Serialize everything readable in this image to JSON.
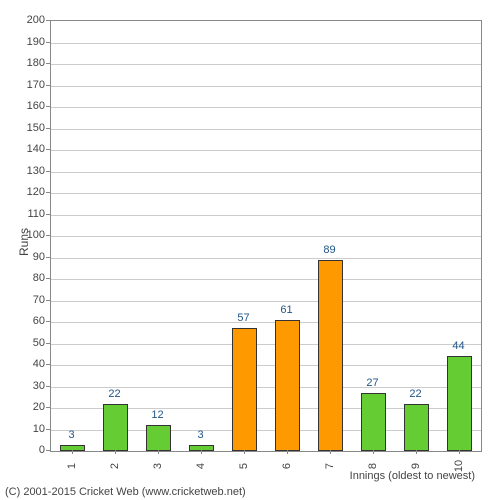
{
  "chart": {
    "type": "bar",
    "ylabel": "Runs",
    "xlabel": "Innings (oldest to newest)",
    "ylim": [
      0,
      200
    ],
    "ytick_step": 10,
    "categories": [
      "1",
      "2",
      "3",
      "4",
      "5",
      "6",
      "7",
      "8",
      "9",
      "10"
    ],
    "values": [
      3,
      22,
      12,
      3,
      57,
      61,
      89,
      27,
      22,
      44
    ],
    "bar_colors": [
      "#66cc33",
      "#66cc33",
      "#66cc33",
      "#66cc33",
      "#ff9900",
      "#ff9900",
      "#ff9900",
      "#66cc33",
      "#66cc33",
      "#66cc33"
    ],
    "label_color": "#225588",
    "grid_color": "#cccccc",
    "axis_color": "#888888",
    "background_color": "#ffffff",
    "label_fontsize": 11,
    "bar_width_ratio": 0.6,
    "yticks": [
      0,
      10,
      20,
      30,
      40,
      50,
      60,
      70,
      80,
      90,
      100,
      110,
      120,
      130,
      140,
      150,
      160,
      170,
      180,
      190,
      200
    ]
  },
  "copyright": "(C) 2001-2015 Cricket Web (www.cricketweb.net)"
}
